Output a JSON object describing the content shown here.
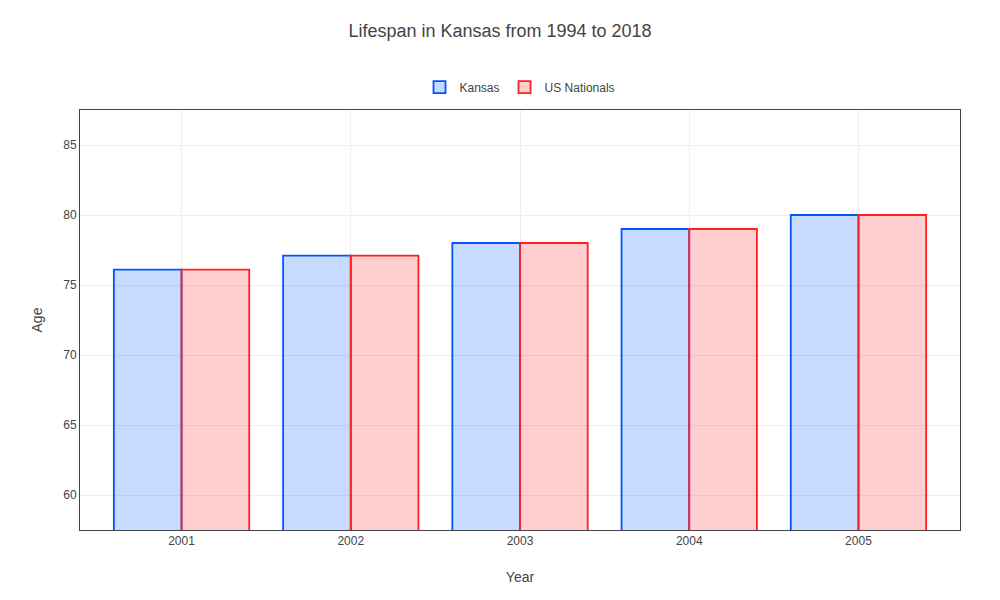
{
  "chart_data": {
    "type": "bar",
    "title": "Lifespan in Kansas from 1994 to 2018",
    "xlabel": "Year",
    "ylabel": "Age",
    "categories": [
      "2001",
      "2002",
      "2003",
      "2004",
      "2005"
    ],
    "series": [
      {
        "name": "Kansas",
        "color": "#0055ff",
        "values": [
          76.1,
          77.1,
          78.0,
          79.0,
          80.0
        ]
      },
      {
        "name": "US Nationals",
        "color": "#ff2020",
        "values": [
          76.1,
          77.1,
          78.0,
          79.0,
          80.0
        ]
      }
    ],
    "ylim": [
      57.5,
      87.5
    ],
    "yticks": [
      60,
      65,
      70,
      75,
      80,
      85
    ],
    "grid": true,
    "legend": "upper center"
  }
}
